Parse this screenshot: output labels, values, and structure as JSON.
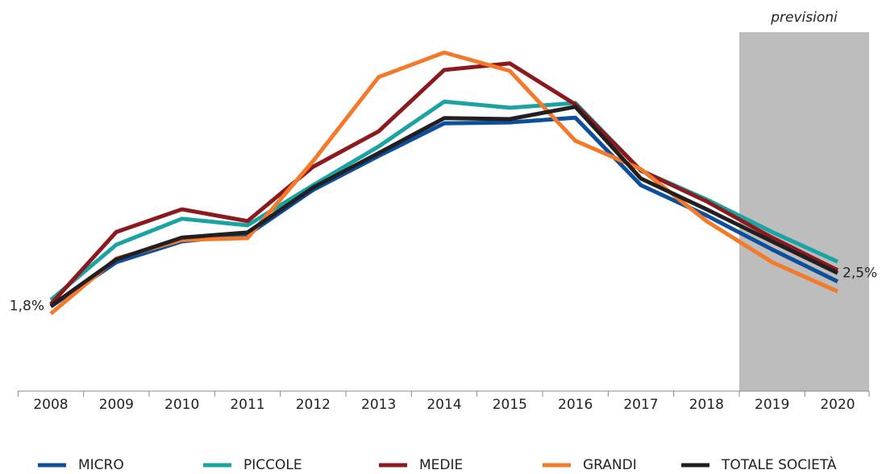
{
  "chart_data": {
    "type": "line",
    "categories": [
      "2008",
      "2009",
      "2010",
      "2011",
      "2012",
      "2013",
      "2014",
      "2015",
      "2016",
      "2017",
      "2018",
      "2019",
      "2020"
    ],
    "series": [
      {
        "name": "MICRO",
        "color": "#0d4f9c",
        "values": [
          1.79,
          2.73,
          3.17,
          3.31,
          4.26,
          4.98,
          5.67,
          5.69,
          5.79,
          4.36,
          3.72,
          3.0,
          2.32
        ]
      },
      {
        "name": "PICCOLE",
        "color": "#1aa3a3",
        "values": [
          1.93,
          3.1,
          3.65,
          3.51,
          4.36,
          5.18,
          6.13,
          6.0,
          6.1,
          4.67,
          4.06,
          3.37,
          2.74
        ]
      },
      {
        "name": "MEDIE",
        "color": "#8b1a1f",
        "values": [
          1.84,
          3.37,
          3.85,
          3.6,
          4.75,
          5.5,
          6.8,
          6.94,
          6.07,
          4.67,
          4.02,
          3.25,
          2.56
        ]
      },
      {
        "name": "GRANDI",
        "color": "#f37a2a",
        "values": [
          1.64,
          2.81,
          3.2,
          3.24,
          4.87,
          6.65,
          7.17,
          6.78,
          5.3,
          4.7,
          3.6,
          2.73,
          2.11
        ]
      },
      {
        "name": "TOTALE SOCIETÀ",
        "color": "#231f20",
        "values": [
          1.8,
          2.79,
          3.25,
          3.36,
          4.31,
          5.04,
          5.78,
          5.76,
          6.02,
          4.5,
          3.85,
          3.17,
          2.5
        ],
        "value_labels": [
          "1,8%",
          null,
          null,
          null,
          null,
          null,
          null,
          null,
          null,
          null,
          null,
          null,
          "2,5%"
        ]
      }
    ],
    "ylim": [
      0,
      7.6
    ],
    "shaded_region": {
      "label": "previsioni",
      "from": "2019",
      "to": "2020",
      "color": "#bdbdbd"
    },
    "legend": "bottom"
  }
}
